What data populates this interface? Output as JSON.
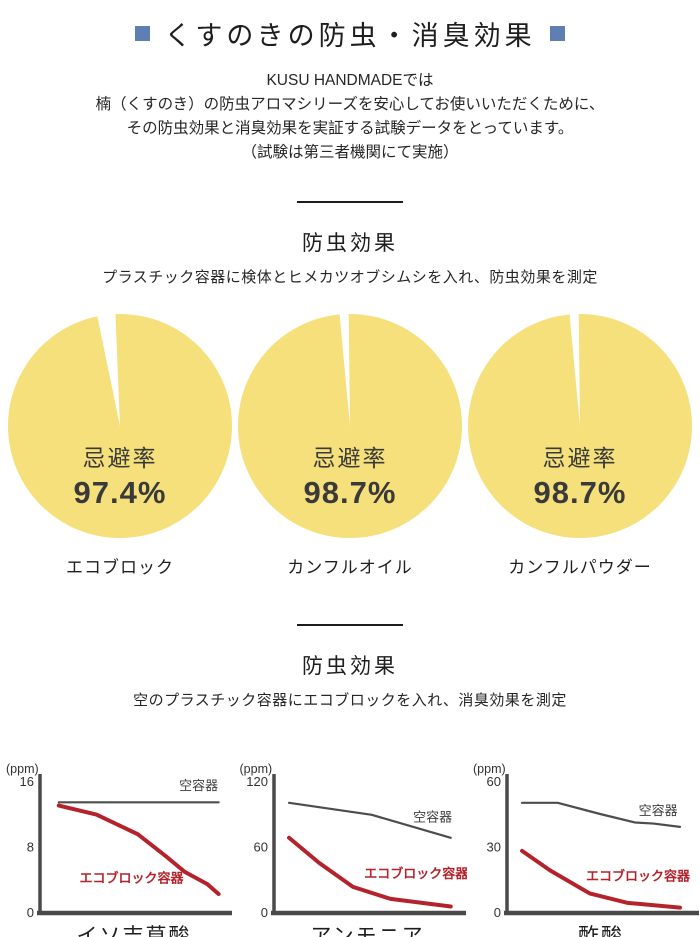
{
  "colors": {
    "accent_blue": "#5f7fb2",
    "pie_yellow": "#f5e07c",
    "line_red": "#b4232c",
    "line_gray": "#4d4d4d",
    "axis_gray": "#4a4a4a",
    "text_dark": "#3a3a3a"
  },
  "header": {
    "title": "くすのきの防虫・消臭効果"
  },
  "intro": {
    "line1": "KUSU HANDMADEでは",
    "line2": "楠（くすのき）の防虫アロマシリーズを安心してお使いいただくために、",
    "line3": "その防虫効果と消臭効果を実証する試験データをとっています。",
    "line4": "（試験は第三者機関にて実施）"
  },
  "section1": {
    "heading": "防虫効果",
    "subtitle": "プラスチック容器に検体とヒメカツオブシムシを入れ、防虫効果を測定"
  },
  "section2": {
    "heading": "防虫効果",
    "subtitle": "空のプラスチック容器にエコブロックを入れ、消臭効果を測定"
  },
  "chart_data": {
    "pies": [
      {
        "type": "pie",
        "title": "エコブロック",
        "center_label": "忌避率",
        "percent_label": "97.4%",
        "slices": [
          {
            "label": "忌避",
            "value": 97.4,
            "color": "#f5e07c"
          },
          {
            "label": "残り",
            "value": 2.6,
            "color": "#ffffff"
          }
        ],
        "gap_center_deg": -7
      },
      {
        "type": "pie",
        "title": "カンフルオイル",
        "center_label": "忌避率",
        "percent_label": "98.7%",
        "slices": [
          {
            "label": "忌避",
            "value": 98.7,
            "color": "#f5e07c"
          },
          {
            "label": "残り",
            "value": 1.3,
            "color": "#ffffff"
          }
        ],
        "gap_center_deg": -3
      },
      {
        "type": "pie",
        "title": "カンフルパウダー",
        "center_label": "忌避率",
        "percent_label": "98.7%",
        "slices": [
          {
            "label": "忌避",
            "value": 98.7,
            "color": "#f5e07c"
          },
          {
            "label": "残り",
            "value": 1.3,
            "color": "#ffffff"
          }
        ],
        "gap_center_deg": -3
      }
    ],
    "line_charts": [
      {
        "type": "line",
        "title": "イソ吉草酸",
        "unit": "(ppm)",
        "ylim": [
          0,
          16
        ],
        "yticks": [
          16,
          8,
          0
        ],
        "grid": false,
        "series": [
          {
            "name": "空容器",
            "color_key": "line_gray",
            "points": [
              [
                0.1,
                13.4
              ],
              [
                0.95,
                13.4
              ]
            ],
            "label_pos": [
              0.74,
              14.9
            ]
          },
          {
            "name": "エコブロック容器",
            "color_key": "line_red",
            "points": [
              [
                0.1,
                13.0
              ],
              [
                0.3,
                11.9
              ],
              [
                0.52,
                9.5
              ],
              [
                0.67,
                6.8
              ],
              [
                0.77,
                4.9
              ],
              [
                0.89,
                3.4
              ],
              [
                0.95,
                2.2
              ]
            ],
            "label_pos": [
              0.21,
              3.6
            ]
          }
        ]
      },
      {
        "type": "line",
        "title": "アンモニア",
        "unit": "(ppm)",
        "ylim": [
          0,
          120
        ],
        "yticks": [
          120,
          60,
          0
        ],
        "grid": false,
        "series": [
          {
            "name": "空容器",
            "color_key": "line_gray",
            "points": [
              [
                0.08,
                100
              ],
              [
                0.52,
                89
              ],
              [
                0.94,
                68
              ]
            ],
            "label_pos": [
              0.74,
              83
            ]
          },
          {
            "name": "エコブロック容器",
            "color_key": "line_red",
            "points": [
              [
                0.08,
                68
              ],
              [
                0.24,
                45
              ],
              [
                0.42,
                23
              ],
              [
                0.62,
                12
              ],
              [
                0.94,
                5
              ]
            ],
            "label_pos": [
              0.48,
              31
            ]
          }
        ]
      },
      {
        "type": "line",
        "title": "酢酸",
        "unit": "(ppm)",
        "ylim": [
          0,
          60
        ],
        "yticks": [
          60,
          30,
          0
        ],
        "grid": false,
        "series": [
          {
            "name": "空容器",
            "color_key": "line_gray",
            "points": [
              [
                0.08,
                50
              ],
              [
                0.27,
                50
              ],
              [
                0.49,
                45
              ],
              [
                0.68,
                41
              ],
              [
                0.78,
                40.5
              ],
              [
                0.92,
                39
              ]
            ],
            "label_pos": [
              0.7,
              44.5
            ]
          },
          {
            "name": "エコブロック容器",
            "color_key": "line_red",
            "points": [
              [
                0.08,
                28
              ],
              [
                0.23,
                19
              ],
              [
                0.44,
                8.5
              ],
              [
                0.64,
                4.2
              ],
              [
                0.92,
                2
              ]
            ],
            "label_pos": [
              0.42,
              14.5
            ]
          }
        ]
      }
    ]
  }
}
